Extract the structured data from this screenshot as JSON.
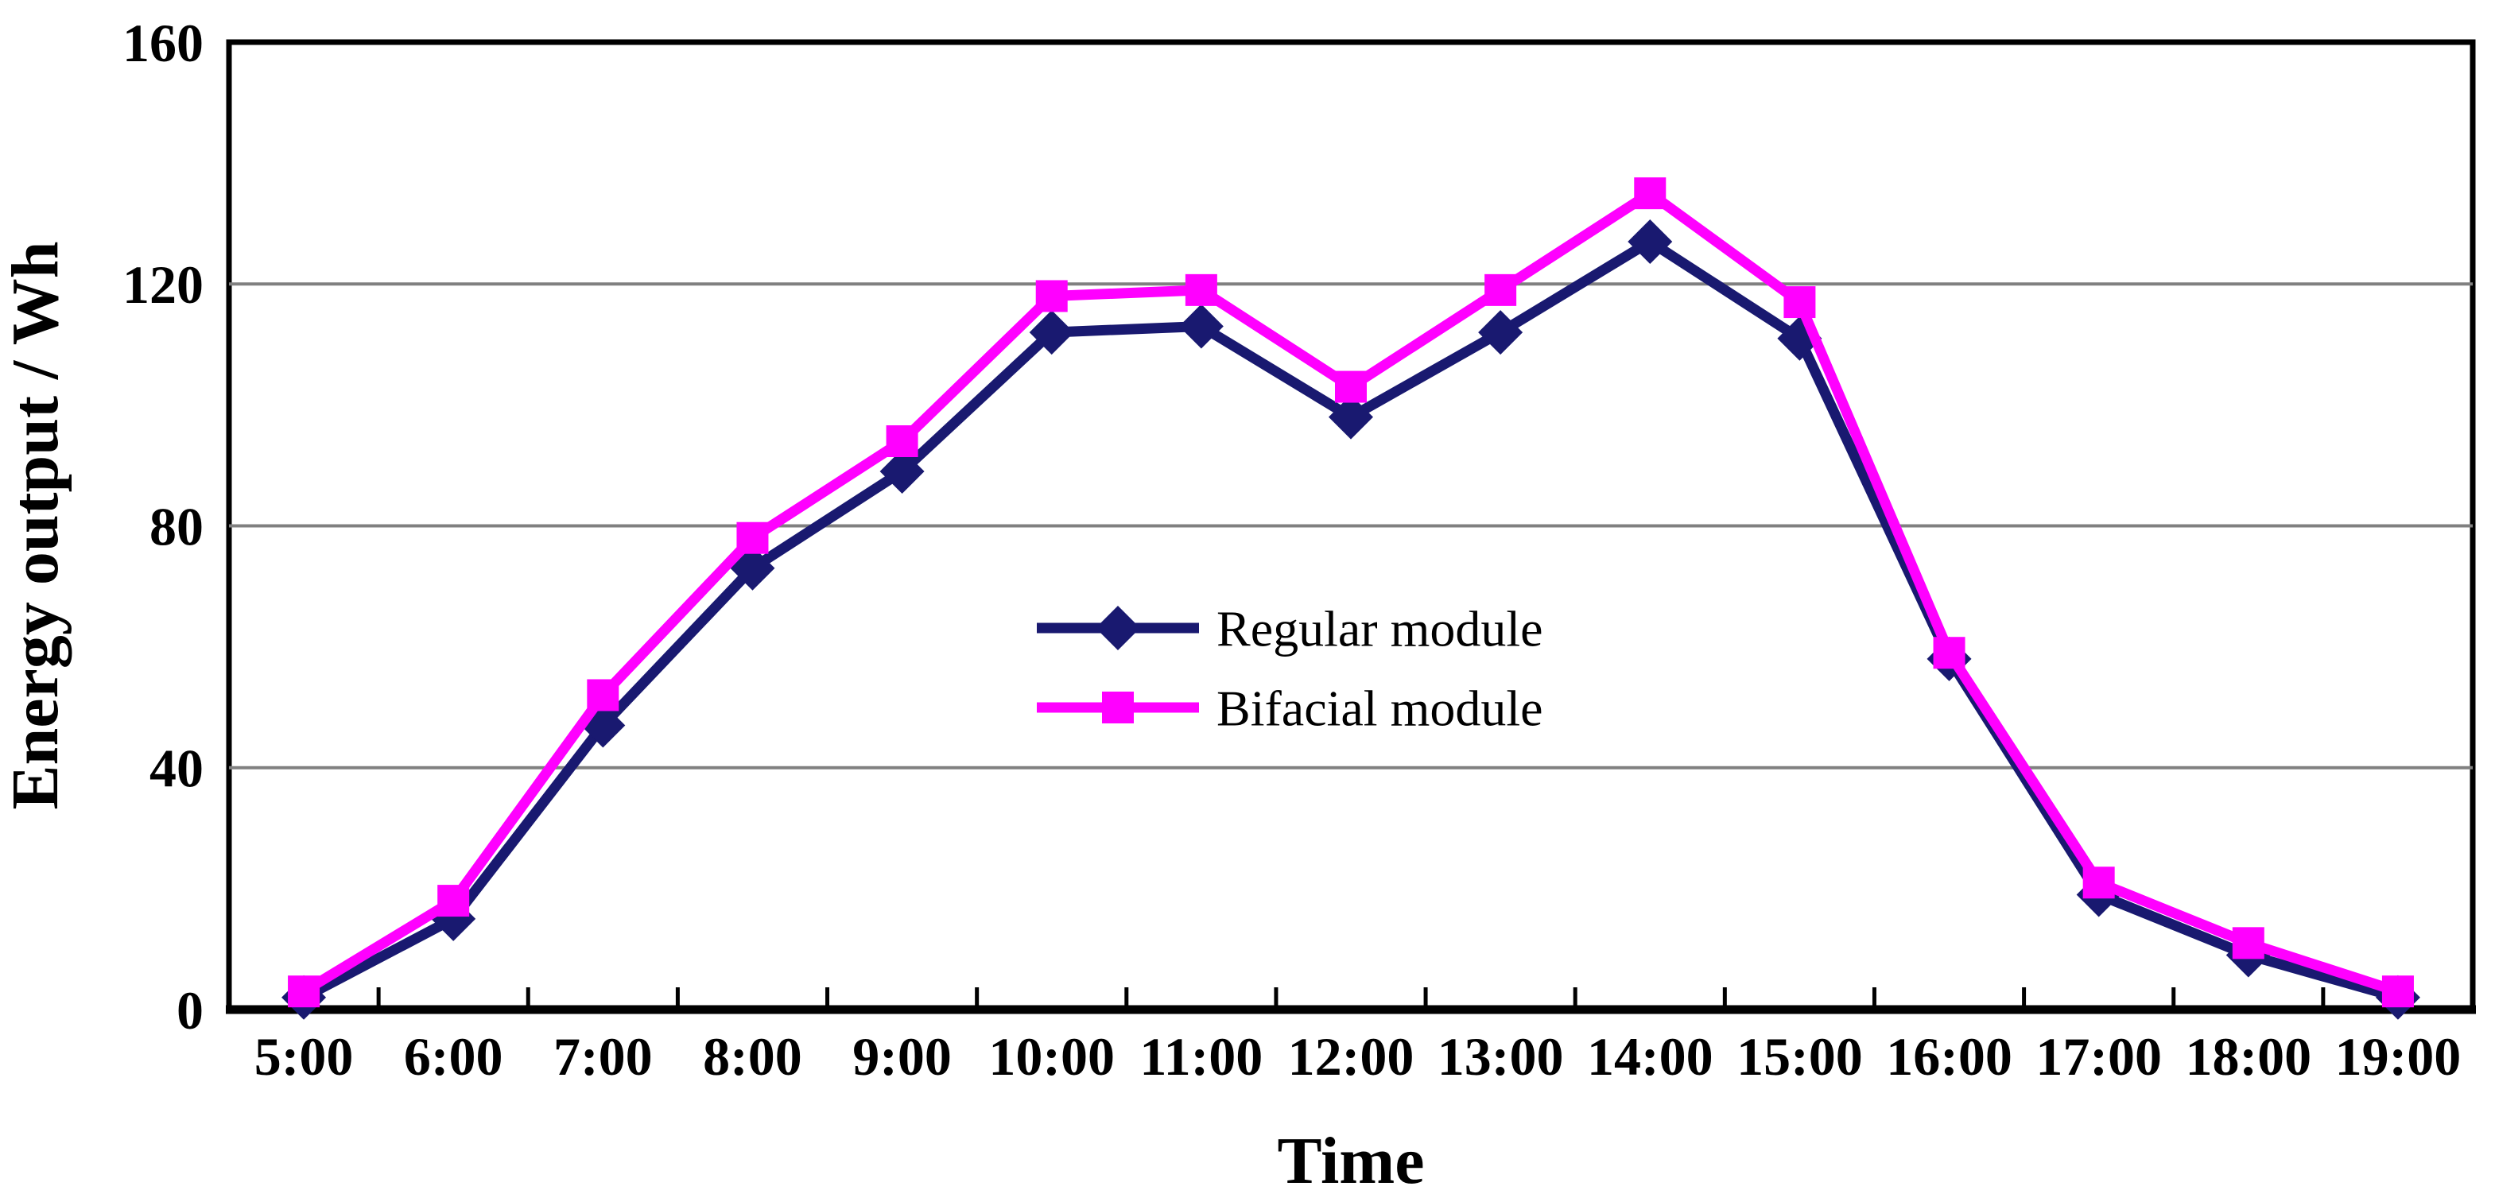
{
  "chart_data": {
    "type": "line",
    "title": "",
    "xlabel": "Time",
    "ylabel": "Energy output / Wh",
    "categories": [
      "5:00",
      "6:00",
      "7:00",
      "8:00",
      "9:00",
      "10:00",
      "11:00",
      "12:00",
      "13:00",
      "14:00",
      "15:00",
      "16:00",
      "17:00",
      "18:00",
      "19:00"
    ],
    "series": [
      {
        "name": "Regular module",
        "color": "#191970",
        "marker": "diamond",
        "values": [
          2,
          15,
          47,
          73,
          89,
          112,
          113,
          98,
          112,
          127,
          111,
          58,
          19,
          9,
          2
        ]
      },
      {
        "name": "Bifacial module",
        "color": "#ff00ff",
        "marker": "square",
        "values": [
          3,
          18,
          52,
          78,
          94,
          118,
          119,
          103,
          119,
          135,
          117,
          59,
          21,
          11,
          3
        ]
      }
    ],
    "ylim": [
      0,
      160
    ],
    "yticks": [
      0,
      40,
      80,
      120,
      160
    ],
    "grid": true,
    "gridline_color": "#808080",
    "axis_color": "#000000",
    "background": "#ffffff",
    "legend_position": "inside-center-right"
  }
}
